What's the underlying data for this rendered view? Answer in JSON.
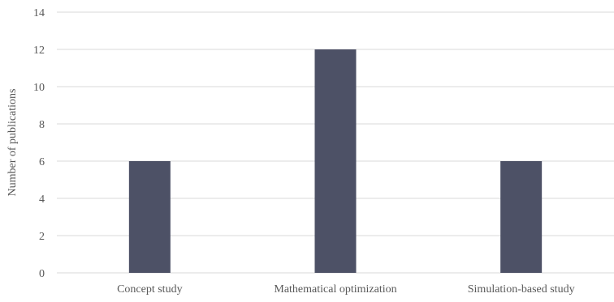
{
  "chart_data": {
    "type": "bar",
    "title": "",
    "xlabel": "",
    "ylabel": "Number of publications",
    "categories": [
      "Concept study",
      "Mathematical optimization",
      "Simulation-based study"
    ],
    "values": [
      6,
      12,
      6
    ],
    "ylim": [
      0,
      14
    ],
    "yticks": [
      0,
      2,
      4,
      6,
      8,
      10,
      12,
      14
    ],
    "grid": true,
    "legend": "none",
    "colors": {
      "bar": "#4d5166",
      "grid": "#d9d9d9",
      "text": "#595959"
    }
  }
}
